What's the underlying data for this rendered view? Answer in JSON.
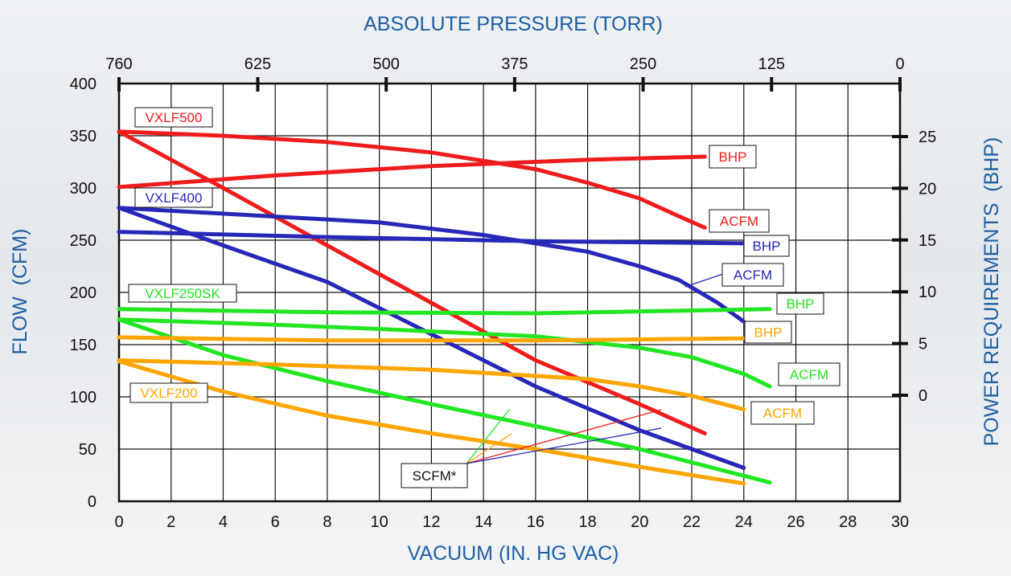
{
  "chart_data": {
    "type": "line",
    "xlabel": "VACUUM (IN. HG VAC)",
    "ylabel": "FLOW  (CFM)",
    "y2label": "POWER REQUIREMENTS  (BHP)",
    "x2label": "ABSOLUTE PRESSURE (TORR)",
    "xlim": [
      0,
      30
    ],
    "ylim": [
      0,
      400
    ],
    "y2lim": [
      0,
      25
    ],
    "x_ticks": [
      0,
      2,
      4,
      6,
      8,
      10,
      12,
      14,
      16,
      18,
      20,
      22,
      24,
      26,
      28,
      30
    ],
    "y_ticks": [
      0,
      50,
      100,
      150,
      200,
      250,
      300,
      350,
      400
    ],
    "y2_ticks": [
      0,
      5,
      10,
      15,
      20,
      25
    ],
    "x2_ticks": [
      760,
      625,
      500,
      375,
      250,
      125,
      0
    ],
    "grid": true,
    "colors": {
      "VXLF500": "#ee1c1c",
      "VXLF400": "#2727b8",
      "VXLF250SK": "#22e622",
      "VXLF200": "#ffa500"
    },
    "series": [
      {
        "model": "VXLF500",
        "curve": "ACFM",
        "color": "#ee1c1c",
        "x": [
          0,
          4,
          8,
          12,
          16,
          18,
          20,
          21.5,
          22.5
        ],
        "y": [
          354,
          350,
          344,
          334,
          318,
          305,
          290,
          273,
          262
        ]
      },
      {
        "model": "VXLF500",
        "curve": "SCFM",
        "color": "#ee1c1c",
        "x": [
          0,
          4,
          8,
          12,
          16,
          20,
          22.5
        ],
        "y": [
          354,
          300,
          245,
          190,
          135,
          93,
          65
        ]
      },
      {
        "model": "VXLF500",
        "curve": "BHP",
        "color": "#ee1c1c",
        "x": [
          0,
          6,
          12,
          18,
          22.5
        ],
        "y": [
          301,
          312,
          321,
          327,
          330
        ]
      },
      {
        "model": "VXLF400",
        "curve": "ACFM",
        "color": "#2727b8",
        "x": [
          0,
          5,
          10,
          14,
          18,
          20,
          21.5,
          23,
          24
        ],
        "y": [
          281,
          274,
          267,
          255,
          239,
          225,
          212,
          190,
          172
        ]
      },
      {
        "model": "VXLF400",
        "curve": "SCFM",
        "color": "#2727b8",
        "x": [
          0,
          4,
          8,
          12,
          16,
          20,
          24
        ],
        "y": [
          281,
          245,
          210,
          160,
          110,
          68,
          32
        ]
      },
      {
        "model": "VXLF400",
        "curve": "BHP",
        "color": "#2727b8",
        "x": [
          0,
          8,
          16,
          24
        ],
        "y": [
          258,
          253,
          249,
          247
        ]
      },
      {
        "model": "VXLF250SK",
        "curve": "ACFM",
        "color": "#22e622",
        "x": [
          0,
          5,
          10,
          16,
          20,
          22,
          24,
          25
        ],
        "y": [
          174,
          170,
          165,
          158,
          147,
          138,
          122,
          110
        ]
      },
      {
        "model": "VXLF250SK",
        "curve": "SCFM",
        "color": "#22e622",
        "x": [
          0,
          4,
          8,
          12,
          16,
          20,
          25
        ],
        "y": [
          174,
          140,
          115,
          93,
          72,
          50,
          18
        ]
      },
      {
        "model": "VXLF250SK",
        "curve": "BHP",
        "color": "#22e622",
        "x": [
          0,
          8,
          16,
          25
        ],
        "y": [
          184,
          181,
          180,
          184
        ]
      },
      {
        "model": "VXLF200",
        "curve": "ACFM",
        "color": "#ffa500",
        "x": [
          0,
          6,
          12,
          18,
          20,
          22,
          24
        ],
        "y": [
          135,
          131,
          126,
          117,
          110,
          101,
          88
        ]
      },
      {
        "model": "VXLF200",
        "curve": "SCFM",
        "color": "#ffa500",
        "x": [
          0,
          4,
          8,
          12,
          16,
          20,
          24
        ],
        "y": [
          134,
          105,
          82,
          65,
          50,
          33,
          17
        ]
      },
      {
        "model": "VXLF200",
        "curve": "BHP",
        "color": "#ffa500",
        "x": [
          0,
          8,
          16,
          24
        ],
        "y": [
          157,
          154,
          154,
          156
        ]
      }
    ],
    "annotations": [
      {
        "text": "VXLF500",
        "color": "#ee1c1c"
      },
      {
        "text": "VXLF400",
        "color": "#2727b8"
      },
      {
        "text": "VXLF250SK",
        "color": "#22e622"
      },
      {
        "text": "VXLF200",
        "color": "#ffa500"
      },
      {
        "text": "BHP",
        "color": "#ee1c1c"
      },
      {
        "text": "ACFM",
        "color": "#ee1c1c"
      },
      {
        "text": "BHP",
        "color": "#2727b8"
      },
      {
        "text": "ACFM",
        "color": "#2727b8"
      },
      {
        "text": "BHP",
        "color": "#22e622"
      },
      {
        "text": "BHP",
        "color": "#ffa500"
      },
      {
        "text": "ACFM",
        "color": "#22e622"
      },
      {
        "text": "ACFM",
        "color": "#ffa500"
      },
      {
        "text": "SCFM*",
        "color": "#111111"
      }
    ]
  }
}
